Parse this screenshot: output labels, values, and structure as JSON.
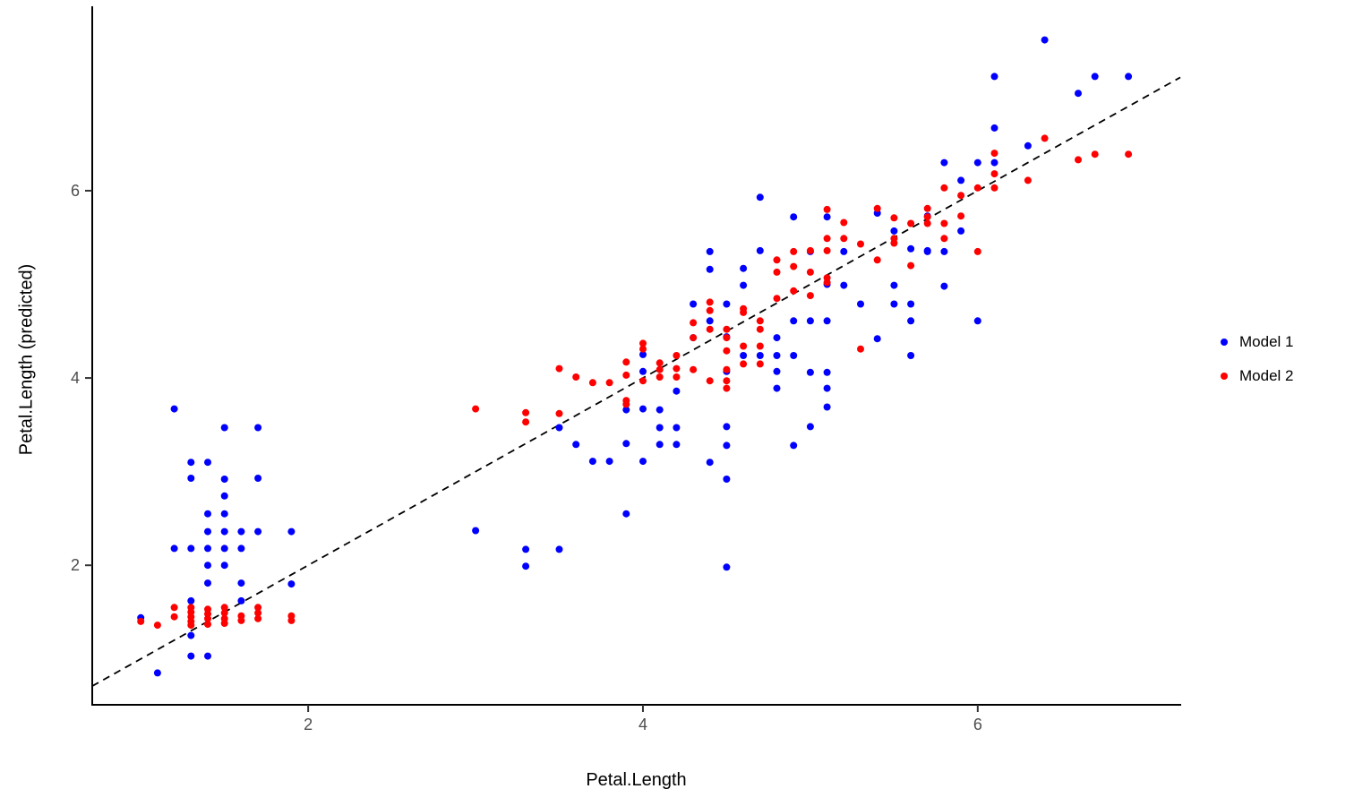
{
  "chart_data": {
    "type": "scatter",
    "title": "",
    "xlabel": "Petal.Length",
    "ylabel": "Petal.Length (predicted)",
    "xlim": [
      0.71,
      7.21
    ],
    "ylim": [
      0.51,
      7.96
    ],
    "x_ticks": [
      "2",
      "4",
      "6"
    ],
    "x_tick_values": [
      2,
      4,
      6
    ],
    "y_ticks": [
      "2",
      "4",
      "6"
    ],
    "y_tick_values": [
      2,
      4,
      6
    ],
    "grid": false,
    "legend_position": "right",
    "tick_label_color": "#4d4d4d",
    "axis_color": "#000000",
    "reference_line": {
      "type": "identity",
      "slope": 1,
      "intercept": 0,
      "style": "dashed",
      "color": "#000000"
    },
    "series": [
      {
        "name": "Model 1",
        "color": "#0000ff",
        "points": [
          [
            1.2,
            3.67
          ],
          [
            1.5,
            3.47
          ],
          [
            1.7,
            3.47
          ],
          [
            1.3,
            3.1
          ],
          [
            1.4,
            3.1
          ],
          [
            1.3,
            2.93
          ],
          [
            1.5,
            2.92
          ],
          [
            1.7,
            2.93
          ],
          [
            1.5,
            2.74
          ],
          [
            1.4,
            2.55
          ],
          [
            1.5,
            2.55
          ],
          [
            1.4,
            2.36
          ],
          [
            1.5,
            2.36
          ],
          [
            1.6,
            2.36
          ],
          [
            1.7,
            2.36
          ],
          [
            1.9,
            2.36
          ],
          [
            1.2,
            2.18
          ],
          [
            1.3,
            2.18
          ],
          [
            1.4,
            2.18
          ],
          [
            1.5,
            2.18
          ],
          [
            1.6,
            2.18
          ],
          [
            1.4,
            2.0
          ],
          [
            1.5,
            2.0
          ],
          [
            1.4,
            1.81
          ],
          [
            1.6,
            1.81
          ],
          [
            1.9,
            1.8
          ],
          [
            1.3,
            1.62
          ],
          [
            1.6,
            1.62
          ],
          [
            1.0,
            1.44
          ],
          [
            1.3,
            1.25
          ],
          [
            1.3,
            1.03
          ],
          [
            1.4,
            1.03
          ],
          [
            1.1,
            0.85
          ],
          [
            3.0,
            2.37
          ],
          [
            3.3,
            2.17
          ],
          [
            3.5,
            2.17
          ],
          [
            3.3,
            1.99
          ],
          [
            4.5,
            1.98
          ],
          [
            3.9,
            2.55
          ],
          [
            3.5,
            3.47
          ],
          [
            3.6,
            3.29
          ],
          [
            3.7,
            3.11
          ],
          [
            3.8,
            3.11
          ],
          [
            3.9,
            3.66
          ],
          [
            3.9,
            3.3
          ],
          [
            4.0,
            4.25
          ],
          [
            4.0,
            4.07
          ],
          [
            4.0,
            3.67
          ],
          [
            4.0,
            3.11
          ],
          [
            4.1,
            3.66
          ],
          [
            4.1,
            3.47
          ],
          [
            4.1,
            3.29
          ],
          [
            4.2,
            3.86
          ],
          [
            4.2,
            3.47
          ],
          [
            4.2,
            3.29
          ],
          [
            4.7,
            5.93
          ],
          [
            4.9,
            5.72
          ],
          [
            5.1,
            5.72
          ],
          [
            5.4,
            5.76
          ],
          [
            5.5,
            5.57
          ],
          [
            4.4,
            5.35
          ],
          [
            4.7,
            5.36
          ],
          [
            5.0,
            5.35
          ],
          [
            5.2,
            5.35
          ],
          [
            5.6,
            5.38
          ],
          [
            5.7,
            5.36
          ],
          [
            4.4,
            5.16
          ],
          [
            4.6,
            5.17
          ],
          [
            4.6,
            4.99
          ],
          [
            5.1,
            5.0
          ],
          [
            5.2,
            4.99
          ],
          [
            5.5,
            4.99
          ],
          [
            4.3,
            4.79
          ],
          [
            4.5,
            4.79
          ],
          [
            5.3,
            4.79
          ],
          [
            5.5,
            4.79
          ],
          [
            5.6,
            4.79
          ],
          [
            4.4,
            4.61
          ],
          [
            4.9,
            4.61
          ],
          [
            5.0,
            4.61
          ],
          [
            5.1,
            4.61
          ],
          [
            5.6,
            4.61
          ],
          [
            4.3,
            4.43
          ],
          [
            4.8,
            4.43
          ],
          [
            5.4,
            4.42
          ],
          [
            4.5,
            4.44
          ],
          [
            4.6,
            4.24
          ],
          [
            4.7,
            4.24
          ],
          [
            4.8,
            4.24
          ],
          [
            4.9,
            4.24
          ],
          [
            5.6,
            4.24
          ],
          [
            4.5,
            4.07
          ],
          [
            4.8,
            4.07
          ],
          [
            5.0,
            4.06
          ],
          [
            5.1,
            4.06
          ],
          [
            4.8,
            3.89
          ],
          [
            5.1,
            3.89
          ],
          [
            5.1,
            3.69
          ],
          [
            4.5,
            3.48
          ],
          [
            5.0,
            3.48
          ],
          [
            4.5,
            3.28
          ],
          [
            4.9,
            3.28
          ],
          [
            4.4,
            3.1
          ],
          [
            4.5,
            2.92
          ],
          [
            6.1,
            6.67
          ],
          [
            6.3,
            6.48
          ],
          [
            5.8,
            6.3
          ],
          [
            6.0,
            6.3
          ],
          [
            6.1,
            6.3
          ],
          [
            5.9,
            6.11
          ],
          [
            5.7,
            5.73
          ],
          [
            5.9,
            5.57
          ],
          [
            5.7,
            5.35
          ],
          [
            5.8,
            5.35
          ],
          [
            5.8,
            4.98
          ],
          [
            6.0,
            4.61
          ],
          [
            6.4,
            7.61
          ],
          [
            6.1,
            7.22
          ],
          [
            6.7,
            7.22
          ],
          [
            6.9,
            7.22
          ],
          [
            6.6,
            7.04
          ]
        ]
      },
      {
        "name": "Model 2",
        "color": "#ff0000",
        "points": [
          [
            1.0,
            1.4
          ],
          [
            1.1,
            1.36
          ],
          [
            1.2,
            1.55
          ],
          [
            1.2,
            1.45
          ],
          [
            1.3,
            1.55
          ],
          [
            1.3,
            1.5
          ],
          [
            1.3,
            1.45
          ],
          [
            1.3,
            1.4
          ],
          [
            1.3,
            1.36
          ],
          [
            1.4,
            1.53
          ],
          [
            1.4,
            1.48
          ],
          [
            1.4,
            1.43
          ],
          [
            1.4,
            1.37
          ],
          [
            1.5,
            1.55
          ],
          [
            1.5,
            1.49
          ],
          [
            1.5,
            1.43
          ],
          [
            1.5,
            1.38
          ],
          [
            1.6,
            1.46
          ],
          [
            1.6,
            1.41
          ],
          [
            1.7,
            1.55
          ],
          [
            1.7,
            1.49
          ],
          [
            1.7,
            1.43
          ],
          [
            1.9,
            1.46
          ],
          [
            1.9,
            1.41
          ],
          [
            3.0,
            3.67
          ],
          [
            3.3,
            3.63
          ],
          [
            3.3,
            3.53
          ],
          [
            3.5,
            4.1
          ],
          [
            3.5,
            3.62
          ],
          [
            3.6,
            4.01
          ],
          [
            3.7,
            3.95
          ],
          [
            3.8,
            3.95
          ],
          [
            3.9,
            4.17
          ],
          [
            3.9,
            4.03
          ],
          [
            3.9,
            3.76
          ],
          [
            3.9,
            3.72
          ],
          [
            4.0,
            4.37
          ],
          [
            4.0,
            4.31
          ],
          [
            4.0,
            3.97
          ],
          [
            4.1,
            4.16
          ],
          [
            4.1,
            4.09
          ],
          [
            4.1,
            4.01
          ],
          [
            4.2,
            4.24
          ],
          [
            4.2,
            4.1
          ],
          [
            4.2,
            4.01
          ],
          [
            5.1,
            5.8
          ],
          [
            5.4,
            5.81
          ],
          [
            5.7,
            5.81
          ],
          [
            5.7,
            5.72
          ],
          [
            5.5,
            5.71
          ],
          [
            5.2,
            5.66
          ],
          [
            5.6,
            5.65
          ],
          [
            5.7,
            5.65
          ],
          [
            5.1,
            5.49
          ],
          [
            5.2,
            5.49
          ],
          [
            5.3,
            5.43
          ],
          [
            5.5,
            5.49
          ],
          [
            5.5,
            5.44
          ],
          [
            4.9,
            5.35
          ],
          [
            5.0,
            5.36
          ],
          [
            5.1,
            5.36
          ],
          [
            4.8,
            5.26
          ],
          [
            4.9,
            5.19
          ],
          [
            5.4,
            5.26
          ],
          [
            4.8,
            5.13
          ],
          [
            5.0,
            5.13
          ],
          [
            5.6,
            5.2
          ],
          [
            5.1,
            5.07
          ],
          [
            5.1,
            5.02
          ],
          [
            4.9,
            4.93
          ],
          [
            4.8,
            4.85
          ],
          [
            5.0,
            4.88
          ],
          [
            4.4,
            4.81
          ],
          [
            4.4,
            4.72
          ],
          [
            4.6,
            4.74
          ],
          [
            4.6,
            4.7
          ],
          [
            4.3,
            4.59
          ],
          [
            4.4,
            4.52
          ],
          [
            4.5,
            4.52
          ],
          [
            4.7,
            4.61
          ],
          [
            4.7,
            4.52
          ],
          [
            4.3,
            4.43
          ],
          [
            4.5,
            4.43
          ],
          [
            4.5,
            4.29
          ],
          [
            4.6,
            4.34
          ],
          [
            4.7,
            4.34
          ],
          [
            4.6,
            4.15
          ],
          [
            4.7,
            4.15
          ],
          [
            4.5,
            4.09
          ],
          [
            4.3,
            4.09
          ],
          [
            4.4,
            3.97
          ],
          [
            4.5,
            3.97
          ],
          [
            4.5,
            3.89
          ],
          [
            5.3,
            4.31
          ],
          [
            6.4,
            6.56
          ],
          [
            6.1,
            6.4
          ],
          [
            6.6,
            6.33
          ],
          [
            6.7,
            6.39
          ],
          [
            6.9,
            6.39
          ],
          [
            6.1,
            6.18
          ],
          [
            5.8,
            6.03
          ],
          [
            6.0,
            6.03
          ],
          [
            6.1,
            6.03
          ],
          [
            6.3,
            6.11
          ],
          [
            5.9,
            5.95
          ],
          [
            5.8,
            5.65
          ],
          [
            5.9,
            5.73
          ],
          [
            5.8,
            5.49
          ],
          [
            6.0,
            5.35
          ]
        ]
      }
    ]
  },
  "legend": {
    "items": [
      {
        "label": "Model 1",
        "color": "#0000ff"
      },
      {
        "label": "Model 2",
        "color": "#ff0000"
      }
    ]
  }
}
